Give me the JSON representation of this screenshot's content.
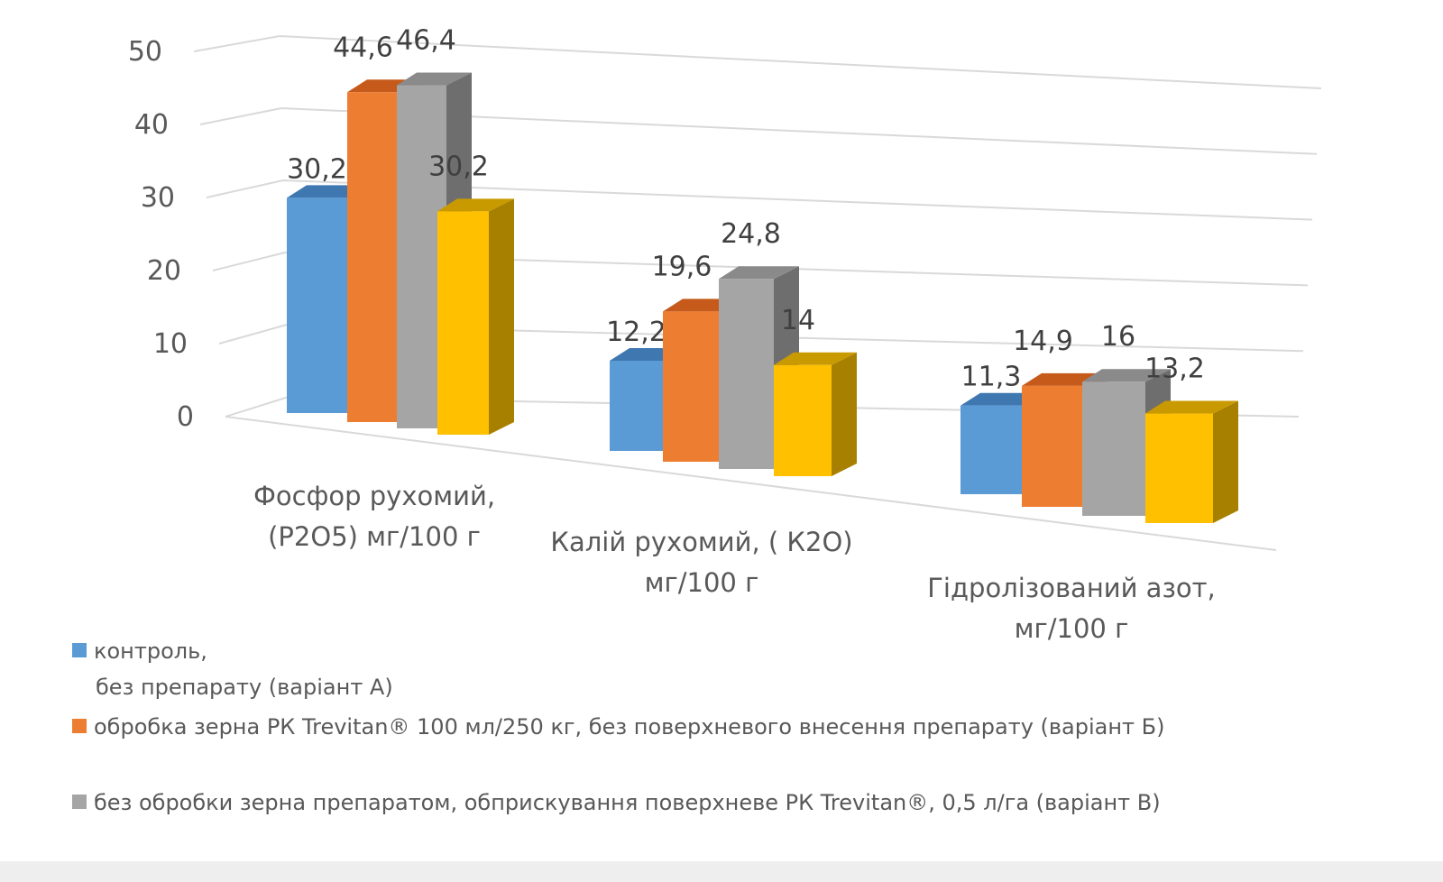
{
  "chart_data": {
    "type": "bar",
    "style": "3d-clustered-column",
    "title": "",
    "categories": [
      "Фосфор рухомий, (Р2О5) мг/100 г",
      "Калій рухомий, ( К2О) мг/100 г",
      "Гідролізований азот, мг/100 г"
    ],
    "category_lines": [
      [
        "Фосфор рухомий,",
        "(Р2О5) мг/100 г"
      ],
      [
        "Калій рухомий, ( К2О)",
        "мг/100 г"
      ],
      [
        "Гідролізований азот,",
        "мг/100 г"
      ]
    ],
    "series": [
      {
        "name": "контроль, без препарату (варіант А)",
        "legend_lines": [
          "контроль,",
          "без препарату (варіант А)"
        ],
        "color": "#5b9bd5",
        "top": "#3f77b0",
        "side": "#41719c",
        "values": [
          30.2,
          12.2,
          11.3
        ],
        "labels": [
          "30,2",
          "12,2",
          "11,3"
        ]
      },
      {
        "name": "обробка зерна РК Trevitan® 100 мл/250 кг, без поверхневого внесення препарату (варіант Б)",
        "legend_lines": [
          "обробка зерна РК Trevitan® 100 мл/250 кг, без поверхневого внесення препарату (варіант Б)"
        ],
        "color": "#ed7d31",
        "top": "#c65a1b",
        "side": "#ae5a21",
        "values": [
          44.6,
          19.6,
          14.9
        ],
        "labels": [
          "44,6",
          "19,6",
          "14,9"
        ]
      },
      {
        "name": "без  обробки зерна препаратом, обприскування поверхневе РК Trevitan®, 0,5 л/га (варіант В)",
        "legend_lines": [
          "без  обробки зерна препаратом, обприскування поверхневе РК Trevitan®, 0,5 л/га (варіант В)"
        ],
        "color": "#a5a5a5",
        "top": "#8a8a8a",
        "side": "#6e6e6e",
        "values": [
          46.4,
          24.8,
          16
        ],
        "labels": [
          "46,4",
          "24,8",
          "16"
        ]
      },
      {
        "name": "",
        "legend_lines": [],
        "color": "#ffc000",
        "top": "#c99a00",
        "side": "#a88000",
        "values": [
          30.2,
          14,
          13.2
        ],
        "labels": [
          "30,2",
          "14",
          "13,2"
        ]
      }
    ],
    "yticks": [
      0,
      10,
      20,
      30,
      40,
      50
    ],
    "ylim": [
      0,
      50
    ],
    "grid": true,
    "legend_position": "bottom-left",
    "gridline_color": "#d9d9d9"
  }
}
